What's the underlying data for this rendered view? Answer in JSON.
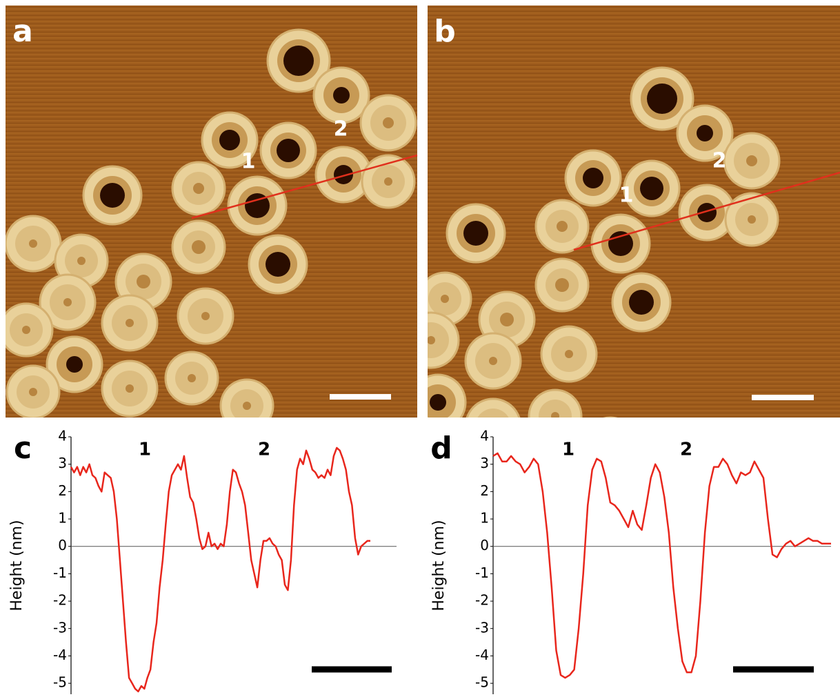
{
  "images": [
    {
      "label": "a",
      "annotations": [
        "1",
        "2"
      ]
    },
    {
      "label": "b",
      "annotations": [
        "1",
        "2"
      ]
    }
  ],
  "chart_data": [
    {
      "type": "line",
      "panel": "c",
      "y_label": "Height (nm)",
      "annotations": [
        "1",
        "2"
      ],
      "ylim": [
        -5.4,
        4
      ],
      "yticks": [
        -5,
        -4,
        -3,
        -2,
        -1,
        0,
        1,
        2,
        3,
        4
      ],
      "zero_line": true,
      "color": "#e8261c",
      "values": [
        2.9,
        2.7,
        2.9,
        2.6,
        2.9,
        2.7,
        3.0,
        2.6,
        2.5,
        2.2,
        2.0,
        2.7,
        2.6,
        2.5,
        2.0,
        1.0,
        -0.5,
        -2.0,
        -3.5,
        -4.8,
        -5.0,
        -5.2,
        -5.3,
        -5.1,
        -5.2,
        -4.8,
        -4.5,
        -3.5,
        -2.8,
        -1.5,
        -0.5,
        0.8,
        2.0,
        2.6,
        2.8,
        3.0,
        2.8,
        3.3,
        2.5,
        1.8,
        1.6,
        1.0,
        0.3,
        -0.1,
        0.0,
        0.5,
        0.0,
        0.1,
        -0.1,
        0.1,
        0.0,
        0.8,
        2.0,
        2.8,
        2.7,
        2.3,
        2.0,
        1.5,
        0.5,
        -0.5,
        -1.0,
        -1.5,
        -0.5,
        0.2,
        0.2,
        0.3,
        0.1,
        0.0,
        -0.3,
        -0.5,
        -1.4,
        -1.6,
        -0.5,
        1.5,
        2.8,
        3.2,
        3.0,
        3.5,
        3.2,
        2.8,
        2.7,
        2.5,
        2.6,
        2.5,
        2.8,
        2.6,
        3.3,
        3.6,
        3.5,
        3.2,
        2.8,
        2.0,
        1.5,
        0.3,
        -0.3,
        0.0,
        0.1,
        0.2,
        0.2
      ]
    },
    {
      "type": "line",
      "panel": "d",
      "y_label": "Height (nm)",
      "annotations": [
        "1",
        "2"
      ],
      "ylim": [
        -5.4,
        4
      ],
      "yticks": [
        -5,
        -4,
        -3,
        -2,
        -1,
        0,
        1,
        2,
        3,
        4
      ],
      "zero_line": true,
      "color": "#e8261c",
      "values": [
        3.3,
        3.4,
        3.1,
        3.1,
        3.3,
        3.1,
        3.0,
        2.7,
        2.9,
        3.2,
        3.0,
        2.0,
        0.5,
        -1.5,
        -3.8,
        -4.7,
        -4.8,
        -4.7,
        -4.5,
        -3.0,
        -1.0,
        1.5,
        2.8,
        3.2,
        3.1,
        2.5,
        1.6,
        1.5,
        1.3,
        1.0,
        0.7,
        1.3,
        0.8,
        0.6,
        1.5,
        2.5,
        3.0,
        2.7,
        1.8,
        0.5,
        -1.5,
        -3.0,
        -4.2,
        -4.6,
        -4.6,
        -4.0,
        -2.0,
        0.5,
        2.2,
        2.9,
        2.9,
        3.2,
        3.0,
        2.6,
        2.3,
        2.7,
        2.6,
        2.7,
        3.1,
        2.8,
        2.5,
        1.0,
        -0.3,
        -0.4,
        -0.1,
        0.1,
        0.2,
        0.0,
        0.1,
        0.2,
        0.3,
        0.2,
        0.2,
        0.1,
        0.1,
        0.1
      ]
    }
  ]
}
